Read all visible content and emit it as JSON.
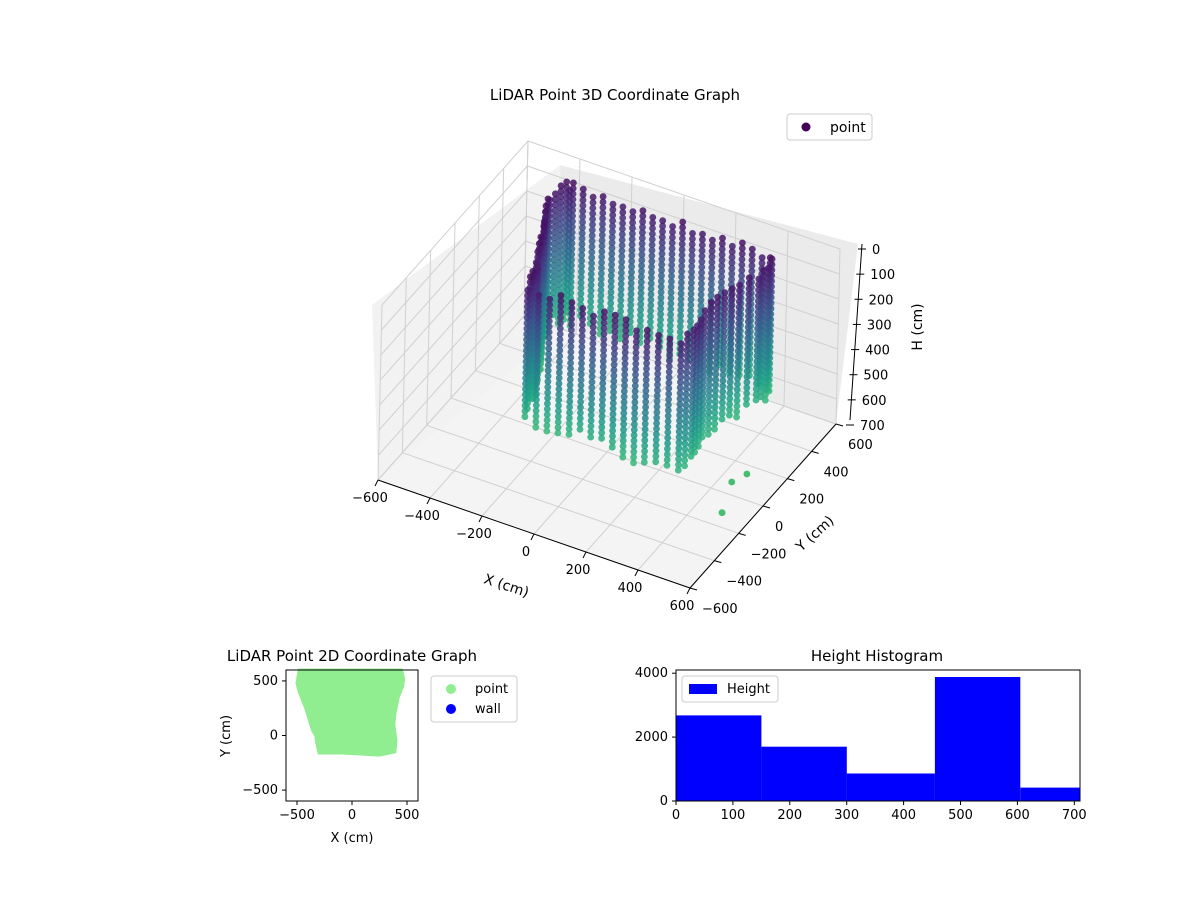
{
  "chart_data": [
    {
      "type": "scatter",
      "projection": "3d",
      "title": "LiDAR Point 3D Coordinate Graph",
      "xlabel": "X (cm)",
      "ylabel": "Y (cm)",
      "zlabel": "H (cm)",
      "xlim": [
        -600,
        600
      ],
      "ylim": [
        -600,
        600
      ],
      "zlim": [
        700,
        0
      ],
      "z_inverted": true,
      "xticks": [
        "−600",
        "−400",
        "−200",
        "0",
        "200",
        "400",
        "600"
      ],
      "yticks": [
        "−600",
        "−400",
        "−200",
        "0",
        "200",
        "400",
        "600"
      ],
      "zticks": [
        "0",
        "100",
        "200",
        "300",
        "400",
        "500",
        "600",
        "700"
      ],
      "legend": {
        "placement": "upper-right",
        "entries": [
          "point"
        ]
      },
      "series": [
        {
          "name": "point",
          "color_map": "viridis",
          "color_by": "height",
          "legend_color": "#440154",
          "description_shape": "room walls scanned as vertical columns of points"
        }
      ],
      "outliers": [
        {
          "x": 560,
          "y": -180,
          "h": 520
        },
        {
          "x": 590,
          "y": -120,
          "h": 510
        },
        {
          "x": 580,
          "y": -300,
          "h": 570
        }
      ],
      "grid": true
    },
    {
      "type": "scatter",
      "title": "LiDAR Point 2D Coordinate Graph",
      "xlabel": "X (cm)",
      "ylabel": "Y (cm)",
      "xlim": [
        -600,
        600
      ],
      "ylim": [
        -600,
        600
      ],
      "xticks": [
        "−500",
        "0",
        "500"
      ],
      "yticks": [
        "−500",
        "0",
        "500"
      ],
      "legend": {
        "placement": "outside-right",
        "entries": [
          "point",
          "wall"
        ]
      },
      "series": [
        {
          "name": "point",
          "color": "#90ee90",
          "region_outline": [
            [
              -450,
              600
            ],
            [
              450,
              600
            ],
            [
              470,
              520
            ],
            [
              460,
              450
            ],
            [
              420,
              350
            ],
            [
              390,
              200
            ],
            [
              380,
              100
            ],
            [
              400,
              -50
            ],
            [
              390,
              -150
            ],
            [
              250,
              -180
            ],
            [
              100,
              -170
            ],
            [
              -100,
              -160
            ],
            [
              -300,
              -160
            ],
            [
              -320,
              -70
            ],
            [
              -330,
              0
            ],
            [
              -360,
              50
            ],
            [
              -420,
              250
            ],
            [
              -480,
              400
            ],
            [
              -500,
              480
            ],
            [
              -480,
              600
            ]
          ]
        },
        {
          "name": "wall",
          "color": "#0000ff",
          "points": []
        }
      ],
      "grid": false
    },
    {
      "type": "histogram",
      "title": "Height Histogram",
      "xlabel": "",
      "ylabel": "",
      "xlim": [
        0,
        710
      ],
      "ylim": [
        0,
        4100
      ],
      "xticks": [
        "0",
        "100",
        "200",
        "300",
        "400",
        "500",
        "600",
        "700"
      ],
      "yticks": [
        "0",
        "2000",
        "4000"
      ],
      "legend": {
        "placement": "upper-left",
        "entries": [
          "Height"
        ]
      },
      "series": [
        {
          "name": "Height",
          "color": "#0000ff",
          "bins": [
            {
              "start": 0,
              "end": 150,
              "count": 2680
            },
            {
              "start": 150,
              "end": 300,
              "count": 1700
            },
            {
              "start": 300,
              "end": 455,
              "count": 860
            },
            {
              "start": 455,
              "end": 605,
              "count": 3880
            },
            {
              "start": 605,
              "end": 710,
              "count": 420
            }
          ]
        }
      ],
      "grid": false
    }
  ]
}
